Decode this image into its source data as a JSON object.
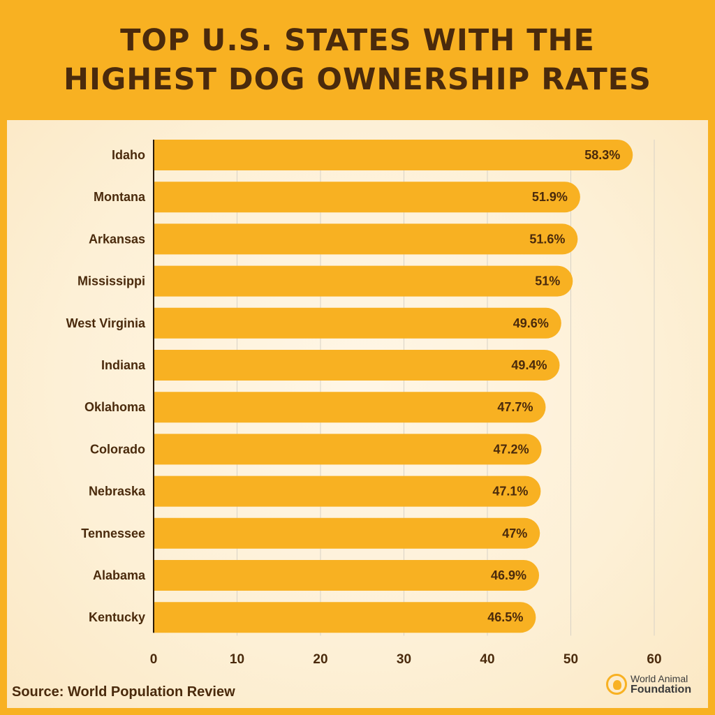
{
  "chart_data": {
    "type": "bar",
    "orientation": "horizontal",
    "title_lines": [
      "TOP U.S. STATES WITH THE",
      "HIGHEST DOG OWNERSHIP RATES"
    ],
    "categories": [
      "Idaho",
      "Montana",
      "Arkansas",
      "Mississippi",
      "West Virginia",
      "Indiana",
      "Oklahoma",
      "Colorado",
      "Nebraska",
      "Tennessee",
      "Alabama",
      "Kentucky"
    ],
    "values": [
      58.3,
      51.9,
      51.6,
      51,
      49.6,
      49.4,
      47.7,
      47.2,
      47.1,
      47,
      46.9,
      46.5
    ],
    "data_labels": [
      "58.3%",
      "51.9%",
      "51.6%",
      "51%",
      "49.6%",
      "49.4%",
      "47.7%",
      "47.2%",
      "47.1%",
      "47%",
      "46.9%",
      "46.5%"
    ],
    "xlim": [
      0,
      60
    ],
    "xticks": [
      0,
      10,
      20,
      30,
      40,
      50,
      60
    ],
    "grid": true,
    "bar_color": "#f8b122",
    "xlabel": "",
    "ylabel": ""
  },
  "source": "Source: World Population Review",
  "logo": {
    "line1": "World Animal",
    "line2": "Foundation"
  }
}
